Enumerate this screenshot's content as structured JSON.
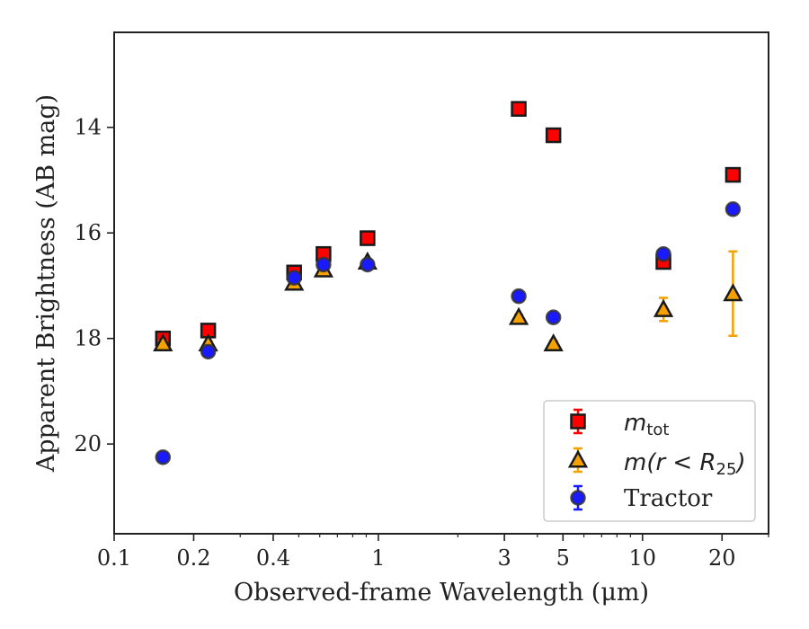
{
  "chart_data": {
    "type": "scatter",
    "title": "",
    "xlabel": "Observed-frame Wavelength (μm)",
    "ylabel": "Apparent Brightness (AB mag)",
    "xscale": "log",
    "xlim": [
      0.1,
      30
    ],
    "ylim": [
      21.7,
      12.2
    ],
    "y_inverted": true,
    "grid": false,
    "legend_position": "lower-right",
    "x_tick_labels": [
      "0.1",
      "0.2",
      "0.4",
      "1",
      "3",
      "5",
      "10",
      "20"
    ],
    "x_tick_values": [
      0.1,
      0.2,
      0.4,
      1,
      3,
      5,
      10,
      20
    ],
    "y_tick_labels": [
      "14",
      "16",
      "18",
      "20"
    ],
    "y_tick_values": [
      14,
      16,
      18,
      20
    ],
    "series": [
      {
        "name": "m_tot",
        "legend_main": "m",
        "legend_sub": "tot",
        "marker": "square",
        "color": "#ff0000",
        "points": [
          {
            "x": 0.153,
            "y": 18.0,
            "err": 0.05
          },
          {
            "x": 0.227,
            "y": 17.85,
            "err": 0.05
          },
          {
            "x": 0.48,
            "y": 16.75,
            "err": 0.05
          },
          {
            "x": 0.62,
            "y": 16.4,
            "err": 0.05
          },
          {
            "x": 0.91,
            "y": 16.1,
            "err": 0.05
          },
          {
            "x": 3.4,
            "y": 13.65,
            "err": 0.05
          },
          {
            "x": 4.6,
            "y": 14.15,
            "err": 0.05
          },
          {
            "x": 12.0,
            "y": 16.55,
            "err": 0.05
          },
          {
            "x": 22.0,
            "y": 14.9,
            "err": 0.05
          }
        ]
      },
      {
        "name": "m(r < R25)",
        "legend_main": "m(r < R",
        "legend_sub": "25",
        "legend_tail": ")",
        "marker": "triangle",
        "color": "#f5a200",
        "points": [
          {
            "x": 0.153,
            "y": 18.1,
            "err": 0.05
          },
          {
            "x": 0.227,
            "y": 18.1,
            "err": 0.05
          },
          {
            "x": 0.48,
            "y": 16.95,
            "err": 0.05
          },
          {
            "x": 0.62,
            "y": 16.7,
            "err": 0.05
          },
          {
            "x": 0.91,
            "y": 16.55,
            "err": 0.05
          },
          {
            "x": 3.4,
            "y": 17.6,
            "err": 0.05
          },
          {
            "x": 4.6,
            "y": 18.1,
            "err": 0.05
          },
          {
            "x": 12.0,
            "y": 17.45,
            "err": 0.22
          },
          {
            "x": 22.0,
            "y": 17.15,
            "err": 0.8
          }
        ]
      },
      {
        "name": "Tractor",
        "legend_main": "Tractor",
        "marker": "circle",
        "color": "#1a1aff",
        "points": [
          {
            "x": 0.153,
            "y": 20.25,
            "err": 0.05
          },
          {
            "x": 0.227,
            "y": 18.25,
            "err": 0.05
          },
          {
            "x": 0.48,
            "y": 16.85,
            "err": 0.05
          },
          {
            "x": 0.62,
            "y": 16.6,
            "err": 0.05
          },
          {
            "x": 0.91,
            "y": 16.6,
            "err": 0.05
          },
          {
            "x": 3.4,
            "y": 17.2,
            "err": 0.05
          },
          {
            "x": 4.6,
            "y": 17.6,
            "err": 0.05
          },
          {
            "x": 12.0,
            "y": 16.4,
            "err": 0.05
          },
          {
            "x": 22.0,
            "y": 15.55,
            "err": 0.05
          }
        ]
      }
    ]
  }
}
